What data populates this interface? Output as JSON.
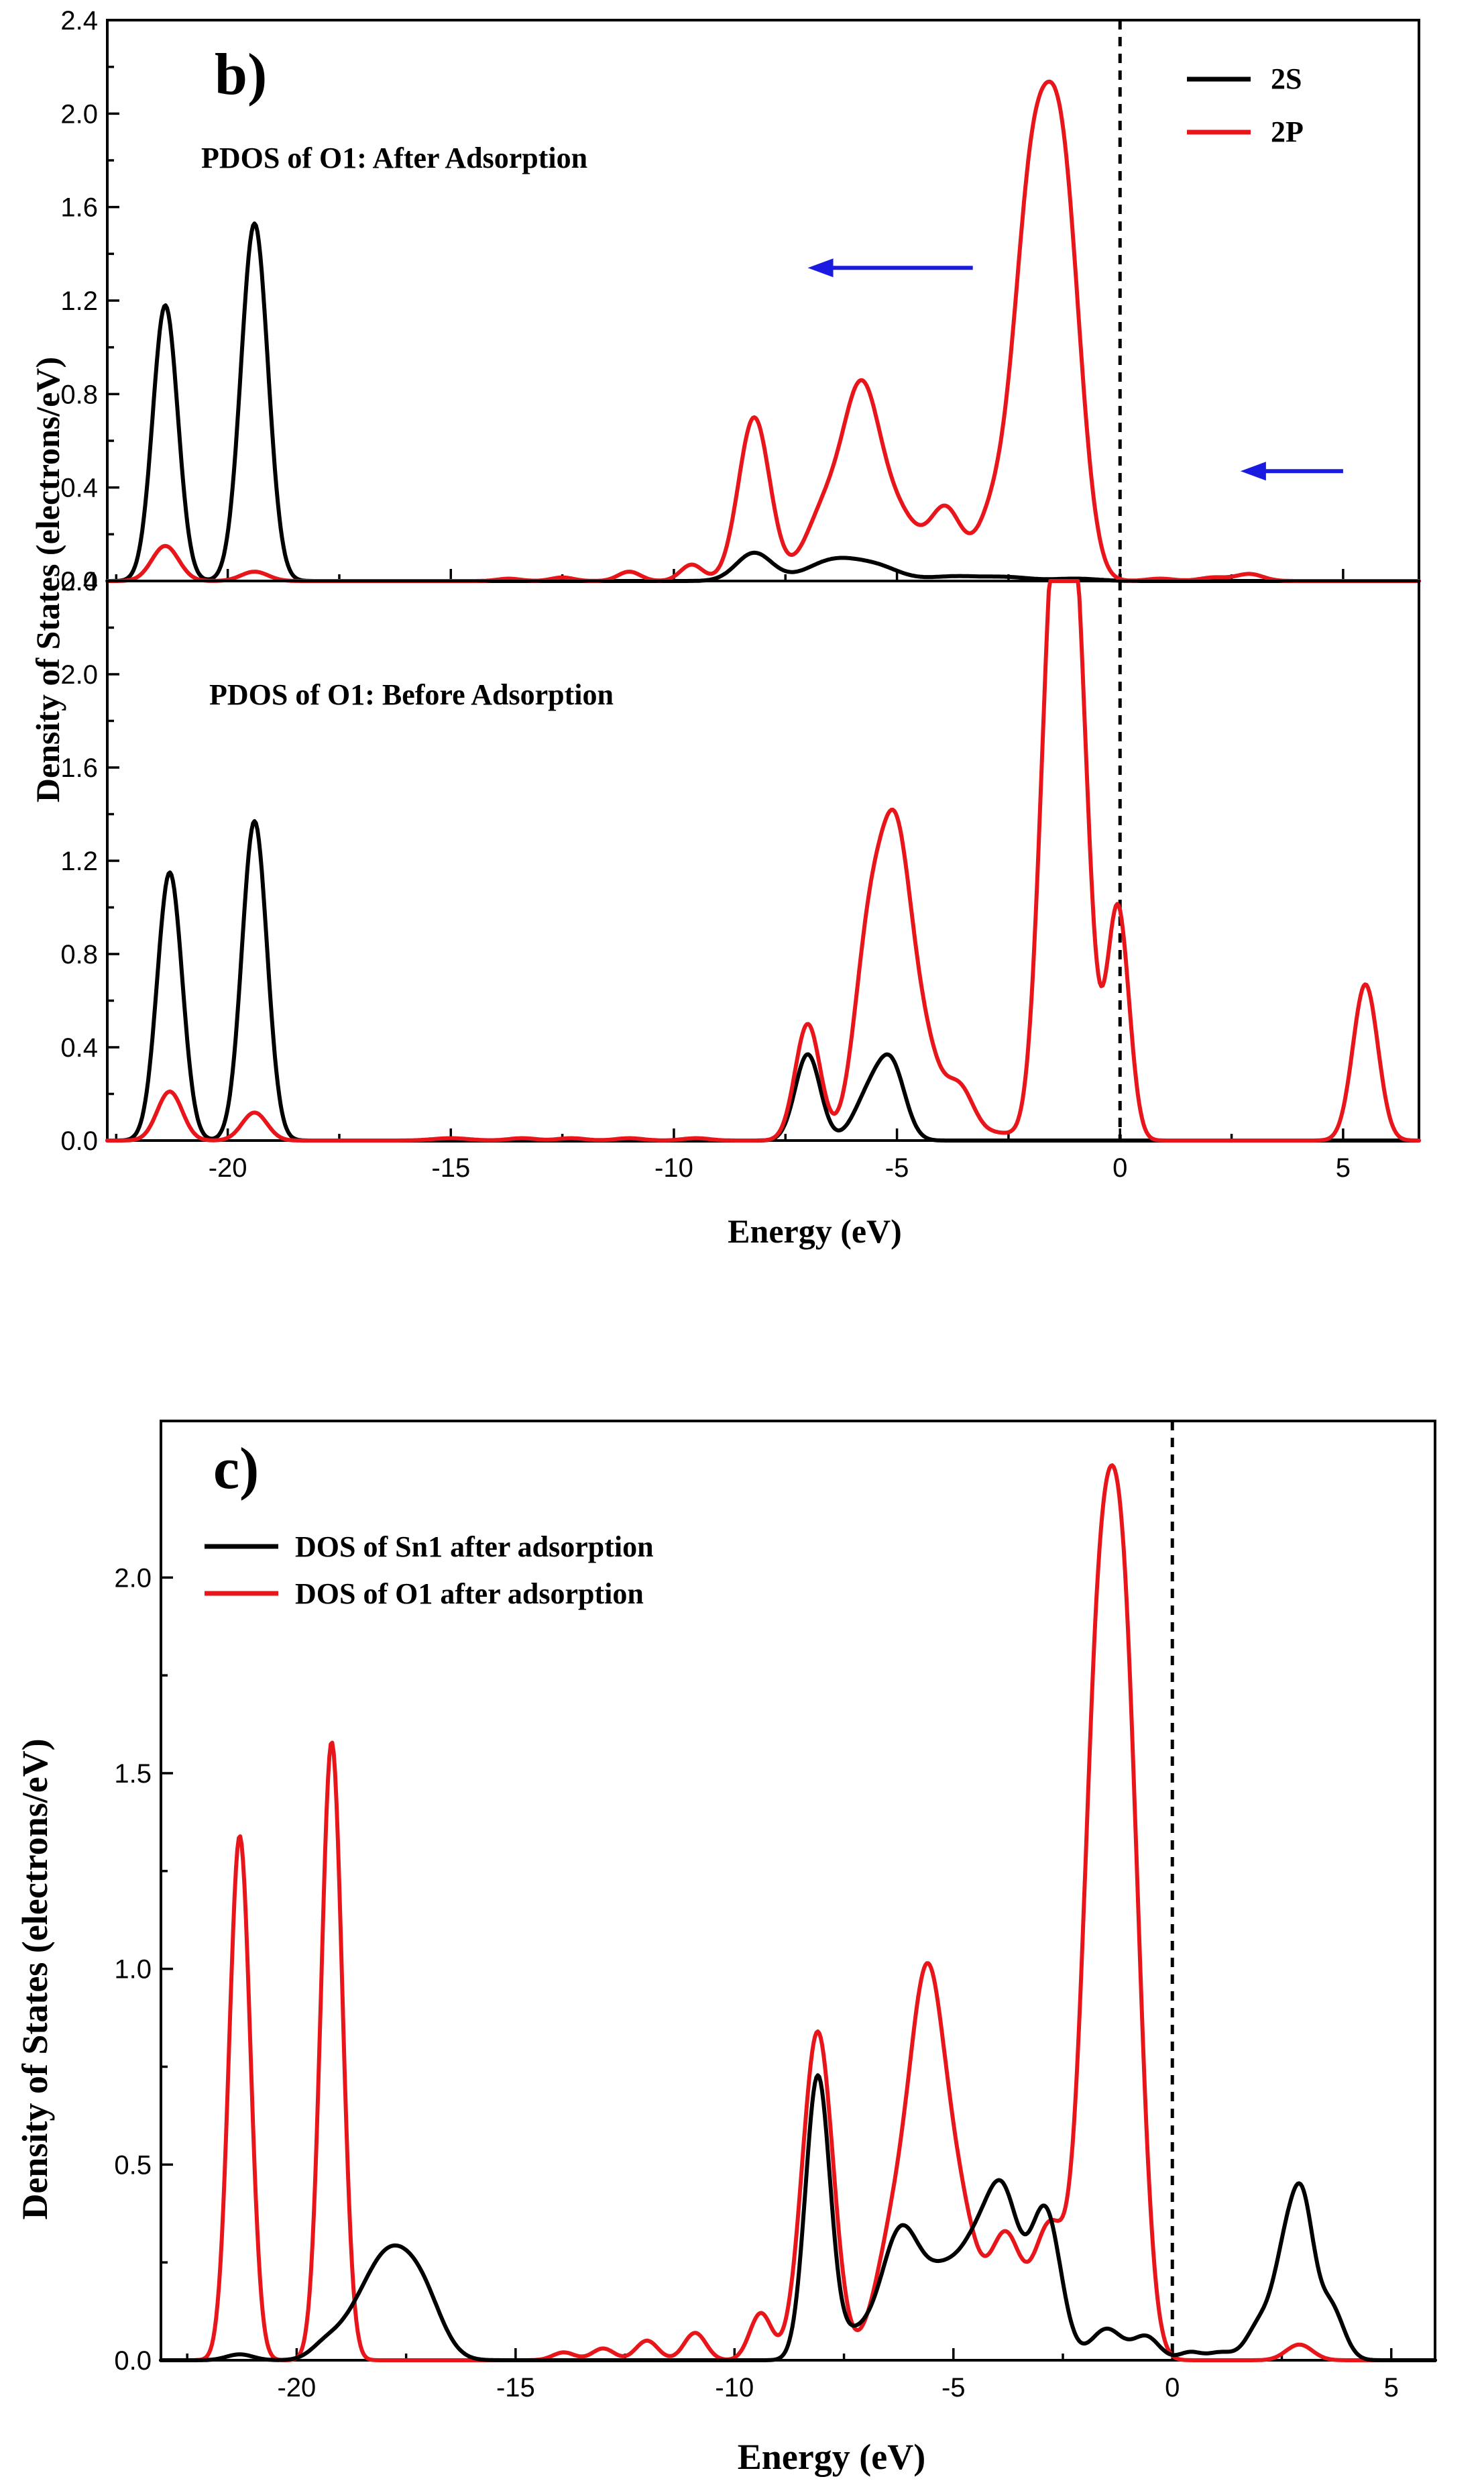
{
  "colors": {
    "s_curve": "#000000",
    "p_curve": "#e8161b",
    "arrow": "#1a1ae0",
    "axis": "#000000"
  },
  "chart_data": [
    {
      "type": "line",
      "panel": "b)",
      "title": "PDOS of O1: After Adsorption",
      "xlabel": "Energy (eV)",
      "ylabel": "Density of States (electrons/eV)",
      "xlim": [
        -22.7,
        6.7
      ],
      "ylim": [
        0,
        2.4
      ],
      "yticks": [
        "0.0",
        "0.4",
        "0.8",
        "1.2",
        "1.6",
        "2.0",
        "2.4"
      ],
      "fermi_level": 0,
      "legend": {
        "position": "top-right",
        "entries": [
          "2S",
          "2P"
        ]
      },
      "arrows": [
        {
          "from": [
            -3.3,
            1.34
          ],
          "to": [
            -7.0,
            1.34
          ]
        },
        {
          "from": [
            5.0,
            0.47
          ],
          "to": [
            2.7,
            0.47
          ]
        }
      ],
      "series": [
        {
          "name": "2S",
          "color": "#000000",
          "peaks": [
            [
              -21.4,
              1.18,
              0.28
            ],
            [
              -19.4,
              1.53,
              0.3
            ],
            [
              -8.2,
              0.12,
              0.4
            ],
            [
              -6.4,
              0.09,
              0.6
            ],
            [
              -5.4,
              0.05,
              0.5
            ],
            [
              -3.7,
              0.02,
              0.6
            ],
            [
              -2.5,
              0.015,
              0.5
            ],
            [
              -1.0,
              0.01,
              0.5
            ]
          ]
        },
        {
          "name": "2P",
          "color": "#e8161b",
          "peaks": [
            [
              -21.4,
              0.15,
              0.3
            ],
            [
              -19.4,
              0.04,
              0.3
            ],
            [
              -13.7,
              0.01,
              0.25
            ],
            [
              -12.5,
              0.015,
              0.25
            ],
            [
              -11.0,
              0.04,
              0.25
            ],
            [
              -9.6,
              0.07,
              0.25
            ],
            [
              -8.2,
              0.7,
              0.35
            ],
            [
              -6.6,
              0.3,
              0.45
            ],
            [
              -5.8,
              0.72,
              0.4
            ],
            [
              -5.0,
              0.28,
              0.5
            ],
            [
              -3.9,
              0.29,
              0.35
            ],
            [
              -2.8,
              0.3,
              0.4
            ],
            [
              -2.0,
              1.48,
              0.38
            ],
            [
              -1.3,
              1.7,
              0.4
            ],
            [
              0.9,
              0.01,
              0.3
            ],
            [
              2.1,
              0.015,
              0.3
            ],
            [
              2.9,
              0.03,
              0.3
            ]
          ]
        }
      ]
    },
    {
      "type": "line",
      "panel": "b)",
      "title": "PDOS of O1: Before Adsorption",
      "xlabel": "Energy (eV)",
      "ylabel": "Density of States (electrons/eV)",
      "xlim": [
        -22.7,
        6.7
      ],
      "ylim": [
        0,
        2.4
      ],
      "xticks": [
        "-20",
        "-15",
        "-10",
        "-5",
        "0",
        "5"
      ],
      "yticks": [
        "0.0",
        "0.4",
        "0.8",
        "1.2",
        "1.6",
        "2.0",
        "2.4"
      ],
      "fermi_level": 0,
      "series": [
        {
          "name": "2S",
          "color": "#000000",
          "peaks": [
            [
              -21.3,
              1.15,
              0.28
            ],
            [
              -19.4,
              1.37,
              0.28
            ],
            [
              -7.0,
              0.37,
              0.28
            ],
            [
              -5.6,
              0.2,
              0.35
            ],
            [
              -5.1,
              0.28,
              0.3
            ]
          ]
        },
        {
          "name": "2P",
          "color": "#e8161b",
          "peaks": [
            [
              -21.3,
              0.21,
              0.28
            ],
            [
              -19.4,
              0.12,
              0.28
            ],
            [
              -15.0,
              0.01,
              0.4
            ],
            [
              -13.4,
              0.01,
              0.3
            ],
            [
              -12.3,
              0.01,
              0.3
            ],
            [
              -11.0,
              0.01,
              0.3
            ],
            [
              -9.5,
              0.01,
              0.3
            ],
            [
              -7.0,
              0.5,
              0.28
            ],
            [
              -5.6,
              0.88,
              0.35
            ],
            [
              -5.0,
              1.1,
              0.33
            ],
            [
              -4.4,
              0.38,
              0.35
            ],
            [
              -3.6,
              0.22,
              0.32
            ],
            [
              -2.7,
              0.03,
              0.4
            ],
            [
              -1.5,
              2.18,
              0.3
            ],
            [
              -1.0,
              2.1,
              0.3
            ],
            [
              -0.05,
              1.0,
              0.25
            ],
            [
              5.5,
              0.67,
              0.28
            ]
          ]
        }
      ]
    },
    {
      "type": "line",
      "panel": "c)",
      "title": "",
      "xlabel": "Energy (eV)",
      "ylabel": "Density of States (electrons/eV)",
      "xlim": [
        -23.1,
        6.0
      ],
      "ylim": [
        0,
        2.4
      ],
      "xticks": [
        "-20",
        "-15",
        "-10",
        "-5",
        "0",
        "5"
      ],
      "yticks": [
        "0.0",
        "0.5",
        "1.0",
        "1.5",
        "2.0"
      ],
      "fermi_level": 0,
      "legend": {
        "position": "top-left",
        "entries": [
          "DOS of Sn1 after adsorption",
          "DOS of O1 after adsorption"
        ]
      },
      "series": [
        {
          "name": "DOS of Sn1 after adsorption",
          "color": "#000000",
          "peaks": [
            [
              -21.3,
              0.015,
              0.3
            ],
            [
              -19.4,
              0.02,
              0.3
            ],
            [
              -18.8,
              0.06,
              0.5
            ],
            [
              -17.9,
              0.25,
              0.55
            ],
            [
              -17.1,
              0.13,
              0.45
            ],
            [
              -8.1,
              0.72,
              0.28
            ],
            [
              -7.3,
              0.06,
              0.4
            ],
            [
              -6.2,
              0.33,
              0.45
            ],
            [
              -5.3,
              0.15,
              0.4
            ],
            [
              -4.4,
              0.3,
              0.5
            ],
            [
              -3.8,
              0.28,
              0.35
            ],
            [
              -2.9,
              0.38,
              0.35
            ],
            [
              -1.5,
              0.08,
              0.35
            ],
            [
              -0.6,
              0.06,
              0.3
            ],
            [
              0.4,
              0.02,
              0.25
            ],
            [
              1.1,
              0.02,
              0.3
            ],
            [
              2.0,
              0.09,
              0.3
            ],
            [
              2.6,
              0.26,
              0.28
            ],
            [
              3.0,
              0.32,
              0.25
            ],
            [
              3.6,
              0.14,
              0.3
            ]
          ]
        },
        {
          "name": "DOS of O1 after adsorption",
          "color": "#e8161b",
          "peaks": [
            [
              -21.3,
              1.34,
              0.24
            ],
            [
              -19.2,
              1.58,
              0.24
            ],
            [
              -13.9,
              0.02,
              0.25
            ],
            [
              -13.0,
              0.03,
              0.25
            ],
            [
              -12.0,
              0.05,
              0.25
            ],
            [
              -10.9,
              0.07,
              0.25
            ],
            [
              -9.4,
              0.12,
              0.25
            ],
            [
              -8.1,
              0.84,
              0.35
            ],
            [
              -6.3,
              0.34,
              0.45
            ],
            [
              -5.6,
              0.8,
              0.38
            ],
            [
              -4.9,
              0.38,
              0.45
            ],
            [
              -3.8,
              0.3,
              0.35
            ],
            [
              -2.8,
              0.34,
              0.38
            ],
            [
              -1.7,
              1.62,
              0.35
            ],
            [
              -1.1,
              1.68,
              0.35
            ],
            [
              2.9,
              0.04,
              0.3
            ]
          ]
        }
      ]
    }
  ],
  "labels": {
    "panel_b": "b)",
    "panel_c": "c)",
    "title_after": "PDOS of O1: After Adsorption",
    "title_before": "PDOS of O1: Before Adsorption",
    "legend_b_s": "2S",
    "legend_b_p": "2P",
    "legend_c_sn": "DOS of Sn1 after adsorption",
    "legend_c_o": "DOS of O1 after adsorption",
    "xlabel_b": "Energy (eV)",
    "xlabel_c": "Energy (eV)",
    "ylabel_b": "Density of States (electrons/eV)",
    "ylabel_c": "Density of States (electrons/eV)"
  }
}
